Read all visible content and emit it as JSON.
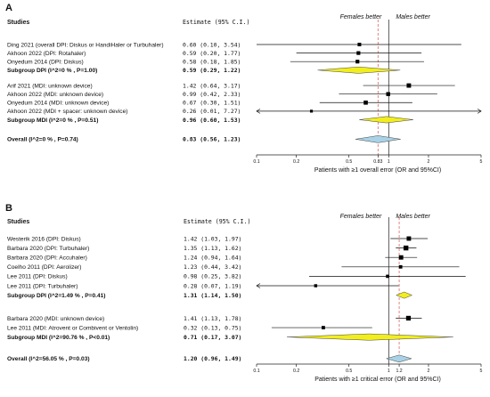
{
  "chart_data": [
    {
      "type": "forest",
      "panel": "A",
      "header_studies": "Studies",
      "header_estimate": "Estimate (95% C.I.)",
      "favours_left": "Females better",
      "favours_right": "Males better",
      "xlabel": "Patients with ≥1 overall error (OR and 95%CI)",
      "x_scale": "log",
      "xlim": [
        0.1,
        5
      ],
      "ticks": [
        "0.1",
        "0.2",
        "0.5",
        "0.83",
        "1",
        "2",
        "5"
      ],
      "tick_values": [
        0.1,
        0.2,
        0.5,
        0.83,
        1,
        2,
        5
      ],
      "null_line": 1,
      "summary_line": 0.83,
      "rows": [
        {
          "kind": "study",
          "label": "Ding 2021 (overall DPI: Diskus or HandiHaler or Turbuhaler)",
          "estimate_text": "0.60 (0.10, 3.54)",
          "or": 0.6,
          "lo": 0.1,
          "hi": 3.54,
          "weight": 1.0,
          "gap_before": 0
        },
        {
          "kind": "study",
          "label": "Akhoon 2022 (DPI: Rotahaler)",
          "estimate_text": "0.59 (0.20, 1.77)",
          "or": 0.59,
          "lo": 0.2,
          "hi": 1.77,
          "weight": 1.1,
          "gap_before": 0
        },
        {
          "kind": "study",
          "label": "Onyedum 2014 (DPI: Diskus)",
          "estimate_text": "0.58 (0.18, 1.85)",
          "or": 0.58,
          "lo": 0.18,
          "hi": 1.85,
          "weight": 1.1,
          "gap_before": 0
        },
        {
          "kind": "subgroup",
          "label": "Subgroup DPI (I^2=0 % , P=1.00)",
          "estimate_text": "0.59 (0.29, 1.22)",
          "or": 0.59,
          "lo": 0.29,
          "hi": 1.22,
          "fill": "#f2ee1e",
          "gap_before": 0
        },
        {
          "kind": "study",
          "label": "Arif 2021 (MDI: unknown device)",
          "estimate_text": "1.42 (0.64, 3.17)",
          "or": 1.42,
          "lo": 0.64,
          "hi": 3.17,
          "weight": 1.5,
          "gap_before": 0.5
        },
        {
          "kind": "study",
          "label": "Akhoon 2022 (MDI: unknown device)",
          "estimate_text": "0.99 (0.42, 2.33)",
          "or": 0.99,
          "lo": 0.42,
          "hi": 2.33,
          "weight": 1.25,
          "gap_before": 0
        },
        {
          "kind": "study",
          "label": "Onyedum 2014 (MDI: unknown device)",
          "estimate_text": "0.67 (0.30, 1.51)",
          "or": 0.67,
          "lo": 0.3,
          "hi": 1.51,
          "weight": 1.35,
          "gap_before": 0
        },
        {
          "kind": "study",
          "label": "Akhoon 2022 (MDI + spacer: unknown device)",
          "estimate_text": "0.26 (0.01, 7.27)",
          "or": 0.26,
          "lo": 0.01,
          "hi": 7.27,
          "weight": 0.55,
          "gap_before": 0
        },
        {
          "kind": "subgroup",
          "label": "Subgroup MDI (I^2=0 % , P=0.51)",
          "estimate_text": "0.96 (0.60, 1.53)",
          "or": 0.96,
          "lo": 0.6,
          "hi": 1.53,
          "fill": "#f2ee1e",
          "gap_before": 0
        },
        {
          "kind": "overall",
          "label": "Overall (I^2=0 % , P=0.74)",
          "estimate_text": "0.83 (0.56, 1.23)",
          "or": 0.83,
          "lo": 0.56,
          "hi": 1.23,
          "fill": "#a9d2e6",
          "gap_before": 0.8
        }
      ]
    },
    {
      "type": "forest",
      "panel": "B",
      "header_studies": "Studies",
      "header_estimate": "Estimate (95% C.I.)",
      "favours_left": "Females better",
      "favours_right": "Males better",
      "xlabel": "Patients with ≥1 critical error (OR and 95%CI)",
      "x_scale": "log",
      "xlim": [
        0.1,
        5
      ],
      "ticks": [
        "0.1",
        "0.2",
        "0.5",
        "1",
        "1.2",
        "2",
        "5"
      ],
      "tick_values": [
        0.1,
        0.2,
        0.5,
        1,
        1.2,
        2,
        5
      ],
      "null_line": 1,
      "summary_line": 1.2,
      "rows": [
        {
          "kind": "study",
          "label": "Westerik 2016 (DPI: Diskus)",
          "estimate_text": "1.42 (1.03, 1.97)",
          "or": 1.42,
          "lo": 1.03,
          "hi": 1.97,
          "weight": 1.5,
          "gap_before": 0
        },
        {
          "kind": "study",
          "label": "Barbara 2020 (DPI: Turbuhaler)",
          "estimate_text": "1.35 (1.13, 1.62)",
          "or": 1.35,
          "lo": 1.13,
          "hi": 1.62,
          "weight": 1.8,
          "gap_before": 0
        },
        {
          "kind": "study",
          "label": "Barbara 2020 (DPI: Accuhaler)",
          "estimate_text": "1.24 (0.94, 1.64)",
          "or": 1.24,
          "lo": 0.94,
          "hi": 1.64,
          "weight": 1.5,
          "gap_before": 0
        },
        {
          "kind": "study",
          "label": "Coelho 2011 (DPI: Aerolizer)",
          "estimate_text": "1.23 (0.44, 3.42)",
          "or": 1.23,
          "lo": 0.44,
          "hi": 3.42,
          "weight": 0.9,
          "gap_before": 0
        },
        {
          "kind": "study",
          "label": "Lee 2011 (DPI: Diskus)",
          "estimate_text": "0.98 (0.25, 3.82)",
          "or": 0.98,
          "lo": 0.25,
          "hi": 3.82,
          "weight": 0.8,
          "gap_before": 0
        },
        {
          "kind": "study",
          "label": "Lee 2011 (DPI: Turbuhaler)",
          "estimate_text": "0.28 (0.07, 1.19)",
          "or": 0.28,
          "lo": 0.07,
          "hi": 1.19,
          "weight": 0.7,
          "gap_before": 0
        },
        {
          "kind": "subgroup",
          "label": "Subgroup DPI (I^2=1.49 % , P=0.41)",
          "estimate_text": "1.31 (1.14, 1.50)",
          "or": 1.31,
          "lo": 1.14,
          "hi": 1.5,
          "fill": "#f2ee1e",
          "gap_before": 0
        },
        {
          "kind": "study",
          "label": "Barbara 2020 (MDI: unknown device)",
          "estimate_text": "1.41 (1.13, 1.78)",
          "or": 1.41,
          "lo": 1.13,
          "hi": 1.78,
          "weight": 1.7,
          "gap_before": 0.9
        },
        {
          "kind": "study",
          "label": "Lee 2011 (MDI: Atrovent or Combivent or Ventolin)",
          "estimate_text": "0.32 (0.13, 0.75)",
          "or": 0.32,
          "lo": 0.13,
          "hi": 0.75,
          "weight": 0.9,
          "gap_before": 0
        },
        {
          "kind": "subgroup",
          "label": "Subgroup MDI (I^2=90.76 % , P<0.01)",
          "estimate_text": "0.71 (0.17, 3.07)",
          "or": 0.71,
          "lo": 0.17,
          "hi": 3.07,
          "fill": "#f2ee1e",
          "gap_before": 0
        },
        {
          "kind": "overall",
          "label": "Overall (I^2=56.05 % , P=0.03)",
          "estimate_text": "1.20 (0.96, 1.49)",
          "or": 1.2,
          "lo": 0.96,
          "hi": 1.49,
          "fill": "#a9d2e6",
          "gap_before": 0.8
        }
      ]
    }
  ]
}
